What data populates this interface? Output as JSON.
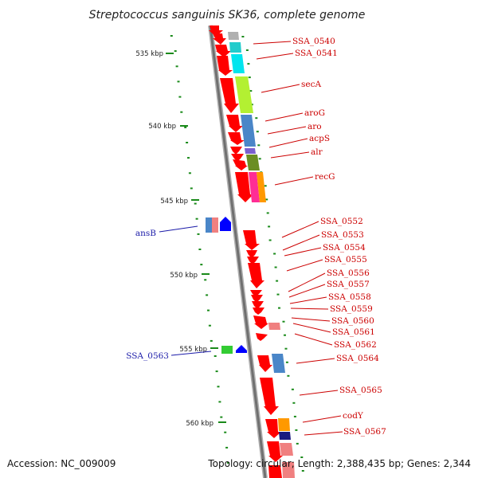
{
  "title": "Streptococcus sanguinis SK36, complete genome",
  "footer": {
    "accession": "Accession: NC_009009",
    "summary": "Topology: circular; Length: 2,388,435 bp; Genes: 2,344"
  },
  "scale_ticks": [
    "535 kbp",
    "540 kbp",
    "545 kbp",
    "550 kbp",
    "555 kbp",
    "560 kbp"
  ],
  "gene_labels_red": [
    "SSA_0540",
    "SSA_0541",
    "secA",
    "aroG",
    "aro",
    "acpS",
    "alr",
    "recG",
    "SSA_0552",
    "SSA_0553",
    "SSA_0554",
    "SSA_0555",
    "SSA_0556",
    "SSA_0557",
    "SSA_0558",
    "SSA_0559",
    "SSA_0560",
    "SSA_0561",
    "SSA_0562",
    "SSA_0564",
    "SSA_0565",
    "codY",
    "SSA_0567"
  ],
  "gene_labels_blue": [
    "ansB",
    "SSA_0563"
  ],
  "colors": {
    "gene_arrow": "#ff0000",
    "backbone": "#808080",
    "tick_mark": "#1a8a1a",
    "label_red": "#cc0000",
    "label_blue": "#1a1aa8",
    "blue_gene": "#0000ff",
    "green_gene": "#33cc33"
  }
}
